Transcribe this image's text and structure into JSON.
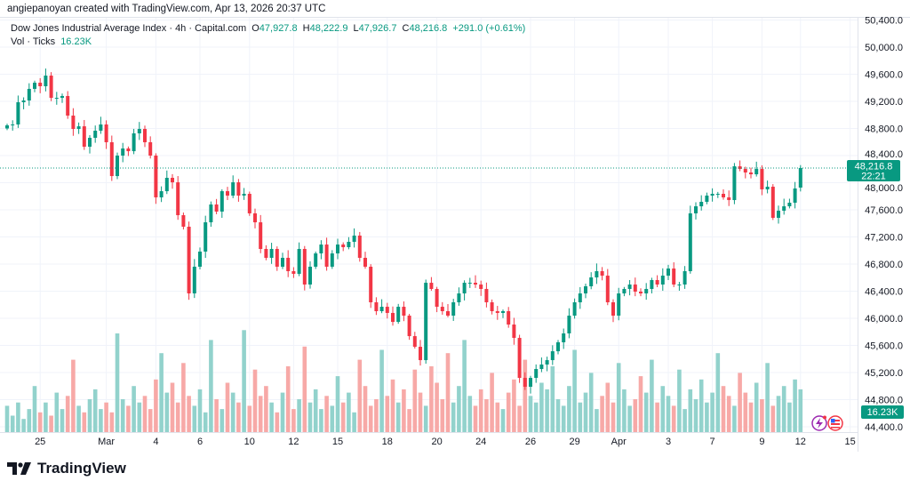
{
  "credit": "angiepanoyan created with TradingView.com, Apr 13, 2026 20:37 UTC",
  "legend": {
    "symbol": "Dow Jones Industrial Average Index · 4h · Capital.com",
    "o_label": "O",
    "o": "47,927.8",
    "h_label": "H",
    "h": "48,222.9",
    "l_label": "L",
    "l": "47,926.7",
    "c_label": "C",
    "c": "48,216.8",
    "change": "+291.0 (+0.61%)",
    "vol_label": "Vol · Ticks",
    "vol": "16.23K"
  },
  "last_price": {
    "price": "48,216.8",
    "countdown": "22:21",
    "value": 48216.8
  },
  "volume_badge": "16.23K",
  "footer": {
    "brand": "TradingView"
  },
  "colors": {
    "up": "#089981",
    "down": "#f23645",
    "up_vol": "#92d2cc",
    "down_vol": "#f7a9a7",
    "grid": "#f0f3fa"
  },
  "icons": [
    "lightning-icon",
    "us-flag-icon"
  ],
  "chart_data": {
    "type": "candlestick",
    "title": "Dow Jones Industrial Average Index · 4h · Capital.com",
    "ylim": [
      44300,
      50500
    ],
    "y_ticks": [
      "50,400.0",
      "50,000.0",
      "49,600.0",
      "49,200.0",
      "48,800.0",
      "48,400.0",
      "48,000.0",
      "47,600.0",
      "47,200.0",
      "46,800.0",
      "46,400.0",
      "46,000.0",
      "45,600.0",
      "45,200.0",
      "44,800.0",
      "44,400.0"
    ],
    "x_ticks": [
      {
        "label": "25",
        "index": 6
      },
      {
        "label": "Mar",
        "index": 18
      },
      {
        "label": "4",
        "index": 27
      },
      {
        "label": "6",
        "index": 35
      },
      {
        "label": "10",
        "index": 44
      },
      {
        "label": "12",
        "index": 52
      },
      {
        "label": "15",
        "index": 60
      },
      {
        "label": "18",
        "index": 69
      },
      {
        "label": "20",
        "index": 78
      },
      {
        "label": "24",
        "index": 86
      },
      {
        "label": "26",
        "index": 95
      },
      {
        "label": "29",
        "index": 103
      },
      {
        "label": "Apr",
        "index": 111
      },
      {
        "label": "3",
        "index": 120
      },
      {
        "label": "7",
        "index": 128
      },
      {
        "label": "9",
        "index": 137
      },
      {
        "label": "12",
        "index": 144
      },
      {
        "label": "15",
        "index": 153
      }
    ],
    "first_open": 48800,
    "close": [
      48846,
      48859,
      49187,
      49213,
      49384,
      49475,
      49423,
      49580,
      49252,
      49252,
      49279,
      48990,
      48793,
      48832,
      48531,
      48662,
      48767,
      48859,
      48597,
      48098,
      48400,
      48505,
      48465,
      48728,
      48793,
      48597,
      48400,
      47784,
      47875,
      48072,
      48006,
      47521,
      47351,
      46367,
      46761,
      46984,
      47416,
      47679,
      47574,
      47875,
      47810,
      48006,
      47810,
      47836,
      47548,
      47416,
      47023,
      46892,
      47023,
      46761,
      46892,
      46695,
      46656,
      47023,
      46498,
      46761,
      46957,
      47088,
      46761,
      46957,
      47088,
      47049,
      47128,
      47220,
      46892,
      46761,
      46236,
      46105,
      46170,
      46079,
      45947,
      46170,
      46039,
      45737,
      45580,
      45383,
      46524,
      46433,
      46170,
      46105,
      46039,
      46236,
      46367,
      46524,
      46524,
      46498,
      46433,
      46236,
      46105,
      46079,
      46105,
      45908,
      45711,
      45121,
      44990,
      45121,
      45252,
      45318,
      45383,
      45514,
      45646,
      45777,
      46039,
      46236,
      46367,
      46472,
      46603,
      46695,
      46629,
      46236,
      46039,
      46367,
      46433,
      46498,
      46393,
      46367,
      46433,
      46564,
      46498,
      46629,
      46734,
      46498,
      46498,
      46695,
      47548,
      47652,
      47718,
      47810,
      47836,
      47836,
      47784,
      47744,
      48242,
      48203,
      48151,
      48124,
      48203,
      47902,
      47941,
      47482,
      47587,
      47652,
      47705,
      47915,
      48216.8
    ],
    "volume_k": [
      8,
      5,
      9,
      4,
      7,
      14,
      6,
      9,
      5,
      12,
      7,
      11,
      22,
      8,
      6,
      10,
      13,
      7,
      9,
      6,
      30,
      10,
      8,
      14,
      9,
      11,
      7,
      16,
      24,
      12,
      15,
      9,
      21,
      11,
      8,
      13,
      6,
      28,
      10,
      7,
      15,
      12,
      9,
      31,
      8,
      19,
      11,
      14,
      9,
      6,
      12,
      20,
      7,
      10,
      26,
      9,
      13,
      7,
      11,
      8,
      17,
      9,
      12,
      6,
      22,
      14,
      8,
      10,
      25,
      11,
      16,
      9,
      13,
      7,
      19,
      12,
      8,
      20,
      15,
      10,
      24,
      9,
      14,
      28,
      11,
      8,
      13,
      10,
      18,
      9,
      7,
      12,
      16,
      8,
      22,
      11,
      9,
      15,
      13,
      20,
      10,
      8,
      14,
      25,
      9,
      12,
      18,
      7,
      11,
      15,
      9,
      21,
      13,
      8,
      10,
      17,
      12,
      22,
      9,
      14,
      11,
      8,
      19,
      7,
      13,
      10,
      16,
      9,
      12,
      24,
      14,
      11,
      8,
      18,
      12,
      9,
      15,
      10,
      21,
      8,
      11,
      14,
      9,
      16,
      13,
      20,
      8,
      16.23
    ]
  }
}
